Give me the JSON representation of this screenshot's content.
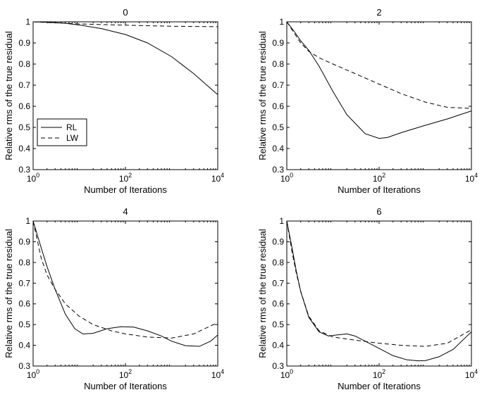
{
  "chart_data": [
    {
      "type": "line",
      "title": "0",
      "xlabel": "Number of Iterations",
      "ylabel": "Relative rms of the true residual",
      "xscale": "log",
      "xlim": [
        1,
        10000
      ],
      "ylim": [
        0.3,
        1
      ],
      "xticks": [
        {
          "base": "10",
          "exp": "0"
        },
        {
          "base": "10",
          "exp": "2"
        },
        {
          "base": "10",
          "exp": "4"
        }
      ],
      "yticks": [
        "0.3",
        "0.4",
        "0.5",
        "0.6",
        "0.7",
        "0.8",
        "0.9",
        "1"
      ],
      "legend": {
        "position": "lower-left",
        "entries": [
          "RL",
          "LW"
        ]
      },
      "series": [
        {
          "name": "RL",
          "style": "solid",
          "x": [
            1,
            2,
            5,
            10,
            30,
            100,
            300,
            1000,
            3000,
            10000
          ],
          "y": [
            1.0,
            0.998,
            0.993,
            0.985,
            0.968,
            0.94,
            0.9,
            0.835,
            0.755,
            0.655
          ]
        },
        {
          "name": "LW",
          "style": "dashed",
          "x": [
            1,
            10,
            100,
            1000,
            10000
          ],
          "y": [
            1.0,
            0.99,
            0.984,
            0.979,
            0.977
          ]
        }
      ]
    },
    {
      "type": "line",
      "title": "2",
      "xlabel": "Number of Iterations",
      "ylabel": "Relative rms of the true residual",
      "xscale": "log",
      "xlim": [
        1,
        10000
      ],
      "ylim": [
        0.3,
        1
      ],
      "xticks": [
        {
          "base": "10",
          "exp": "0"
        },
        {
          "base": "10",
          "exp": "2"
        },
        {
          "base": "10",
          "exp": "4"
        }
      ],
      "yticks": [
        "0.3",
        "0.4",
        "0.5",
        "0.6",
        "0.7",
        "0.8",
        "0.9",
        "1"
      ],
      "series": [
        {
          "name": "RL",
          "style": "solid",
          "x": [
            1,
            1.5,
            2,
            3,
            5,
            10,
            20,
            50,
            100,
            150,
            300,
            1000,
            3000,
            10000
          ],
          "y": [
            1.0,
            0.95,
            0.91,
            0.865,
            0.79,
            0.67,
            0.56,
            0.47,
            0.448,
            0.452,
            0.475,
            0.51,
            0.54,
            0.578
          ]
        },
        {
          "name": "LW",
          "style": "dashed",
          "x": [
            1,
            2,
            3,
            5,
            10,
            30,
            100,
            300,
            1000,
            3000,
            10000
          ],
          "y": [
            1.0,
            0.9,
            0.86,
            0.83,
            0.8,
            0.755,
            0.705,
            0.66,
            0.62,
            0.595,
            0.59
          ]
        }
      ]
    },
    {
      "type": "line",
      "title": "4",
      "xlabel": "Number of Iterations",
      "ylabel": "Relative rms of the true residual",
      "xscale": "log",
      "xlim": [
        1,
        10000
      ],
      "ylim": [
        0.3,
        1
      ],
      "xticks": [
        {
          "base": "10",
          "exp": "0"
        },
        {
          "base": "10",
          "exp": "2"
        },
        {
          "base": "10",
          "exp": "4"
        }
      ],
      "yticks": [
        "0.3",
        "0.4",
        "0.5",
        "0.6",
        "0.7",
        "0.8",
        "0.9",
        "1"
      ],
      "series": [
        {
          "name": "RL",
          "style": "solid",
          "x": [
            1,
            1.5,
            2,
            3,
            5,
            8,
            12,
            20,
            40,
            80,
            150,
            300,
            600,
            1000,
            2000,
            4000,
            7000,
            10000
          ],
          "y": [
            1.0,
            0.87,
            0.78,
            0.67,
            0.55,
            0.48,
            0.455,
            0.458,
            0.48,
            0.49,
            0.488,
            0.47,
            0.445,
            0.42,
            0.398,
            0.395,
            0.42,
            0.45
          ]
        },
        {
          "name": "LW",
          "style": "dashed",
          "x": [
            1,
            1.5,
            2,
            3,
            5,
            10,
            20,
            50,
            100,
            300,
            1000,
            3000,
            10000
          ],
          "y": [
            1.0,
            0.82,
            0.74,
            0.67,
            0.6,
            0.54,
            0.5,
            0.47,
            0.455,
            0.44,
            0.435,
            0.455,
            0.51
          ]
        }
      ]
    },
    {
      "type": "line",
      "title": "6",
      "xlabel": "Number of Iterations",
      "ylabel": "Relative rms of the true residual",
      "xscale": "log",
      "xlim": [
        1,
        10000
      ],
      "ylim": [
        0.3,
        1
      ],
      "xticks": [
        {
          "base": "10",
          "exp": "0"
        },
        {
          "base": "10",
          "exp": "2"
        },
        {
          "base": "10",
          "exp": "4"
        }
      ],
      "yticks": [
        "0.3",
        "0.4",
        "0.5",
        "0.6",
        "0.7",
        "0.8",
        "0.9",
        "1"
      ],
      "series": [
        {
          "name": "RL",
          "style": "solid",
          "x": [
            1,
            1.3,
            1.6,
            2,
            3,
            5,
            8,
            12,
            20,
            30,
            50,
            100,
            200,
            400,
            700,
            1000,
            2000,
            4000,
            10000
          ],
          "y": [
            1.0,
            0.87,
            0.76,
            0.66,
            0.535,
            0.465,
            0.445,
            0.45,
            0.455,
            0.445,
            0.42,
            0.385,
            0.35,
            0.33,
            0.325,
            0.326,
            0.345,
            0.38,
            0.465
          ]
        },
        {
          "name": "LW",
          "style": "dashed",
          "x": [
            1,
            1.3,
            1.6,
            2,
            3,
            5,
            10,
            30,
            100,
            300,
            1000,
            3000,
            10000
          ],
          "y": [
            1.0,
            0.85,
            0.75,
            0.66,
            0.54,
            0.47,
            0.44,
            0.425,
            0.41,
            0.4,
            0.395,
            0.41,
            0.475
          ]
        }
      ]
    }
  ]
}
